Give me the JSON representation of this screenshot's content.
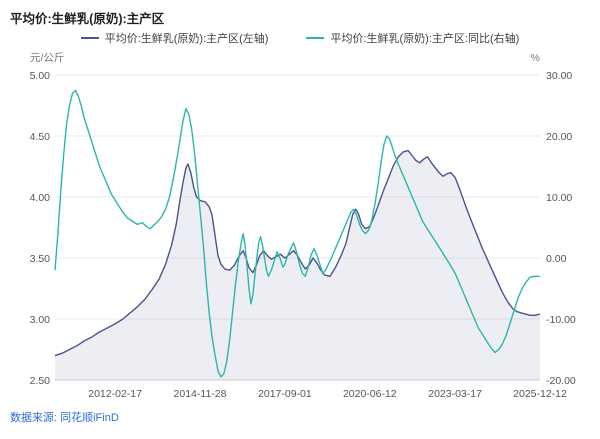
{
  "page": {
    "title": "平均价:生鲜乳(原奶):主产区",
    "source": "数据来源: 同花顺iFinD"
  },
  "legend": {
    "items": [
      {
        "label": "平均价:生鲜乳(原奶):主产区(左轴)",
        "color": "#4a548c"
      },
      {
        "label": "平均价:生鲜乳(原奶):主产区:同比(右轴)",
        "color": "#2ab7a9"
      }
    ]
  },
  "chart_data": {
    "type": "line",
    "title": "平均价:生鲜乳(原奶):主产区",
    "grid": true,
    "legend_position": "top",
    "left_axis": {
      "unit": "元/公斤",
      "range": [
        2.5,
        5.0
      ],
      "ticks": [
        "5.00",
        "4.50",
        "4.00",
        "3.50",
        "3.00",
        "2.50"
      ]
    },
    "right_axis": {
      "unit": "%",
      "range": [
        -20,
        30
      ],
      "ticks": [
        "30.00",
        "20.00",
        "10.00",
        "0.00",
        "-10.00",
        "-20.00"
      ]
    },
    "x_axis": {
      "ticks": [
        {
          "label": "2012-02-17",
          "f": 0.124
        },
        {
          "label": "2014-11-28",
          "f": 0.299
        },
        {
          "label": "2017-09-01",
          "f": 0.474
        },
        {
          "label": "2020-06-12",
          "f": 0.649
        },
        {
          "label": "2023-03-17",
          "f": 0.825
        },
        {
          "label": "2025-12-12",
          "f": 1.0
        }
      ]
    },
    "series": [
      {
        "name": "平均价:生鲜乳(原奶):主产区(左轴)",
        "axis": "left",
        "color": "#4a548c",
        "fill": "rgba(74,84,140,0.10)",
        "x": [
          0,
          0.015,
          0.03,
          0.045,
          0.06,
          0.075,
          0.09,
          0.105,
          0.124,
          0.14,
          0.155,
          0.17,
          0.185,
          0.2,
          0.215,
          0.228,
          0.24,
          0.25,
          0.258,
          0.264,
          0.27,
          0.274,
          0.28,
          0.286,
          0.292,
          0.3,
          0.31,
          0.318,
          0.324,
          0.33,
          0.336,
          0.342,
          0.35,
          0.36,
          0.37,
          0.38,
          0.388,
          0.394,
          0.4,
          0.408,
          0.415,
          0.422,
          0.43,
          0.438,
          0.446,
          0.455,
          0.465,
          0.474,
          0.483,
          0.492,
          0.5,
          0.508,
          0.516,
          0.524,
          0.532,
          0.54,
          0.548,
          0.556,
          0.567,
          0.578,
          0.59,
          0.6,
          0.608,
          0.614,
          0.62,
          0.626,
          0.632,
          0.64,
          0.649,
          0.658,
          0.668,
          0.678,
          0.688,
          0.698,
          0.708,
          0.718,
          0.728,
          0.736,
          0.744,
          0.752,
          0.76,
          0.768,
          0.776,
          0.784,
          0.792,
          0.8,
          0.808,
          0.816,
          0.825,
          0.833,
          0.841,
          0.849,
          0.857,
          0.865,
          0.873,
          0.881,
          0.889,
          0.897,
          0.905,
          0.913,
          0.921,
          0.929,
          0.937,
          0.945,
          0.953,
          0.961,
          0.97,
          0.98,
          0.99,
          1
        ],
        "values": [
          2.7,
          2.72,
          2.75,
          2.78,
          2.82,
          2.85,
          2.89,
          2.92,
          2.96,
          3,
          3.05,
          3.1,
          3.16,
          3.24,
          3.33,
          3.45,
          3.6,
          3.78,
          3.98,
          4.12,
          4.24,
          4.27,
          4.2,
          4.08,
          4,
          3.97,
          3.96,
          3.92,
          3.85,
          3.68,
          3.52,
          3.45,
          3.41,
          3.4,
          3.44,
          3.52,
          3.56,
          3.5,
          3.42,
          3.38,
          3.44,
          3.52,
          3.56,
          3.52,
          3.49,
          3.51,
          3.53,
          3.5,
          3.53,
          3.56,
          3.52,
          3.46,
          3.41,
          3.44,
          3.5,
          3.46,
          3.4,
          3.36,
          3.35,
          3.42,
          3.52,
          3.62,
          3.76,
          3.86,
          3.9,
          3.86,
          3.78,
          3.74,
          3.76,
          3.84,
          3.95,
          4.06,
          4.16,
          4.26,
          4.33,
          4.37,
          4.38,
          4.34,
          4.3,
          4.28,
          4.31,
          4.33,
          4.28,
          4.24,
          4.2,
          4.17,
          4.19,
          4.2,
          4.16,
          4.08,
          3.99,
          3.9,
          3.82,
          3.74,
          3.66,
          3.58,
          3.51,
          3.44,
          3.37,
          3.3,
          3.23,
          3.17,
          3.12,
          3.08,
          3.06,
          3.05,
          3.04,
          3.03,
          3.03,
          3.04
        ]
      },
      {
        "name": "平均价:生鲜乳(原奶):主产区:同比(右轴)",
        "axis": "right",
        "color": "#2ab7a9",
        "x": [
          0,
          0.006,
          0.012,
          0.018,
          0.024,
          0.03,
          0.036,
          0.042,
          0.048,
          0.054,
          0.06,
          0.068,
          0.076,
          0.084,
          0.092,
          0.1,
          0.108,
          0.116,
          0.124,
          0.132,
          0.14,
          0.15,
          0.16,
          0.17,
          0.18,
          0.188,
          0.196,
          0.204,
          0.212,
          0.22,
          0.228,
          0.236,
          0.244,
          0.252,
          0.258,
          0.264,
          0.27,
          0.276,
          0.282,
          0.288,
          0.294,
          0.3,
          0.306,
          0.312,
          0.318,
          0.324,
          0.33,
          0.336,
          0.342,
          0.348,
          0.354,
          0.36,
          0.366,
          0.372,
          0.378,
          0.384,
          0.388,
          0.392,
          0.396,
          0.4,
          0.404,
          0.408,
          0.412,
          0.416,
          0.42,
          0.424,
          0.428,
          0.432,
          0.436,
          0.44,
          0.446,
          0.452,
          0.458,
          0.464,
          0.47,
          0.474,
          0.48,
          0.486,
          0.492,
          0.498,
          0.504,
          0.51,
          0.516,
          0.522,
          0.528,
          0.534,
          0.54,
          0.546,
          0.552,
          0.558,
          0.564,
          0.57,
          0.578,
          0.586,
          0.594,
          0.602,
          0.61,
          0.616,
          0.622,
          0.628,
          0.634,
          0.64,
          0.646,
          0.649,
          0.654,
          0.66,
          0.666,
          0.672,
          0.678,
          0.684,
          0.69,
          0.696,
          0.702,
          0.71,
          0.718,
          0.726,
          0.734,
          0.742,
          0.75,
          0.758,
          0.766,
          0.774,
          0.782,
          0.79,
          0.798,
          0.806,
          0.814,
          0.825,
          0.833,
          0.841,
          0.849,
          0.857,
          0.865,
          0.873,
          0.881,
          0.889,
          0.897,
          0.907,
          0.915,
          0.923,
          0.931,
          0.939,
          0.947,
          0.955,
          0.963,
          0.971,
          0.979,
          0.988,
          1
        ],
        "values": [
          -2,
          4,
          11,
          17,
          22,
          25,
          27,
          27.5,
          26.5,
          25,
          23,
          21,
          19,
          17,
          15,
          13.5,
          12,
          10.5,
          9.5,
          8.5,
          7.5,
          6.5,
          6,
          5.5,
          5.8,
          5.2,
          4.8,
          5.4,
          6,
          6.8,
          8,
          10,
          13,
          16.5,
          19.5,
          22.5,
          24.5,
          23.5,
          21,
          17,
          12,
          7,
          2,
          -4,
          -9,
          -13,
          -16,
          -18.5,
          -19.5,
          -19,
          -17,
          -13.5,
          -9,
          -4.5,
          -0.5,
          2.5,
          4,
          2,
          -1.5,
          -5,
          -7.5,
          -6,
          -3,
          0,
          2.5,
          3.5,
          2,
          0,
          -2,
          -3,
          -2,
          -0.5,
          1,
          0,
          -1.5,
          -1,
          0.5,
          1.5,
          2.5,
          1,
          -1,
          -2.5,
          -3,
          -1.5,
          0.5,
          1.5,
          0.5,
          -1,
          -2.5,
          -2,
          -1,
          0,
          1.5,
          3,
          4.5,
          6,
          7.5,
          8,
          7,
          5.5,
          4.5,
          4,
          4.5,
          5,
          6.5,
          9,
          12,
          15.5,
          18.5,
          20,
          19.5,
          18,
          16.5,
          15,
          13.5,
          12,
          10.5,
          9,
          7.5,
          6,
          5,
          4,
          3,
          2,
          1,
          0,
          -1,
          -2.5,
          -4,
          -5.5,
          -7,
          -8.5,
          -10,
          -11.5,
          -12.5,
          -13.5,
          -14.5,
          -15.5,
          -15,
          -14,
          -12.5,
          -10.5,
          -8.5,
          -6.5,
          -5,
          -4,
          -3.2,
          -3,
          -3
        ]
      }
    ]
  }
}
